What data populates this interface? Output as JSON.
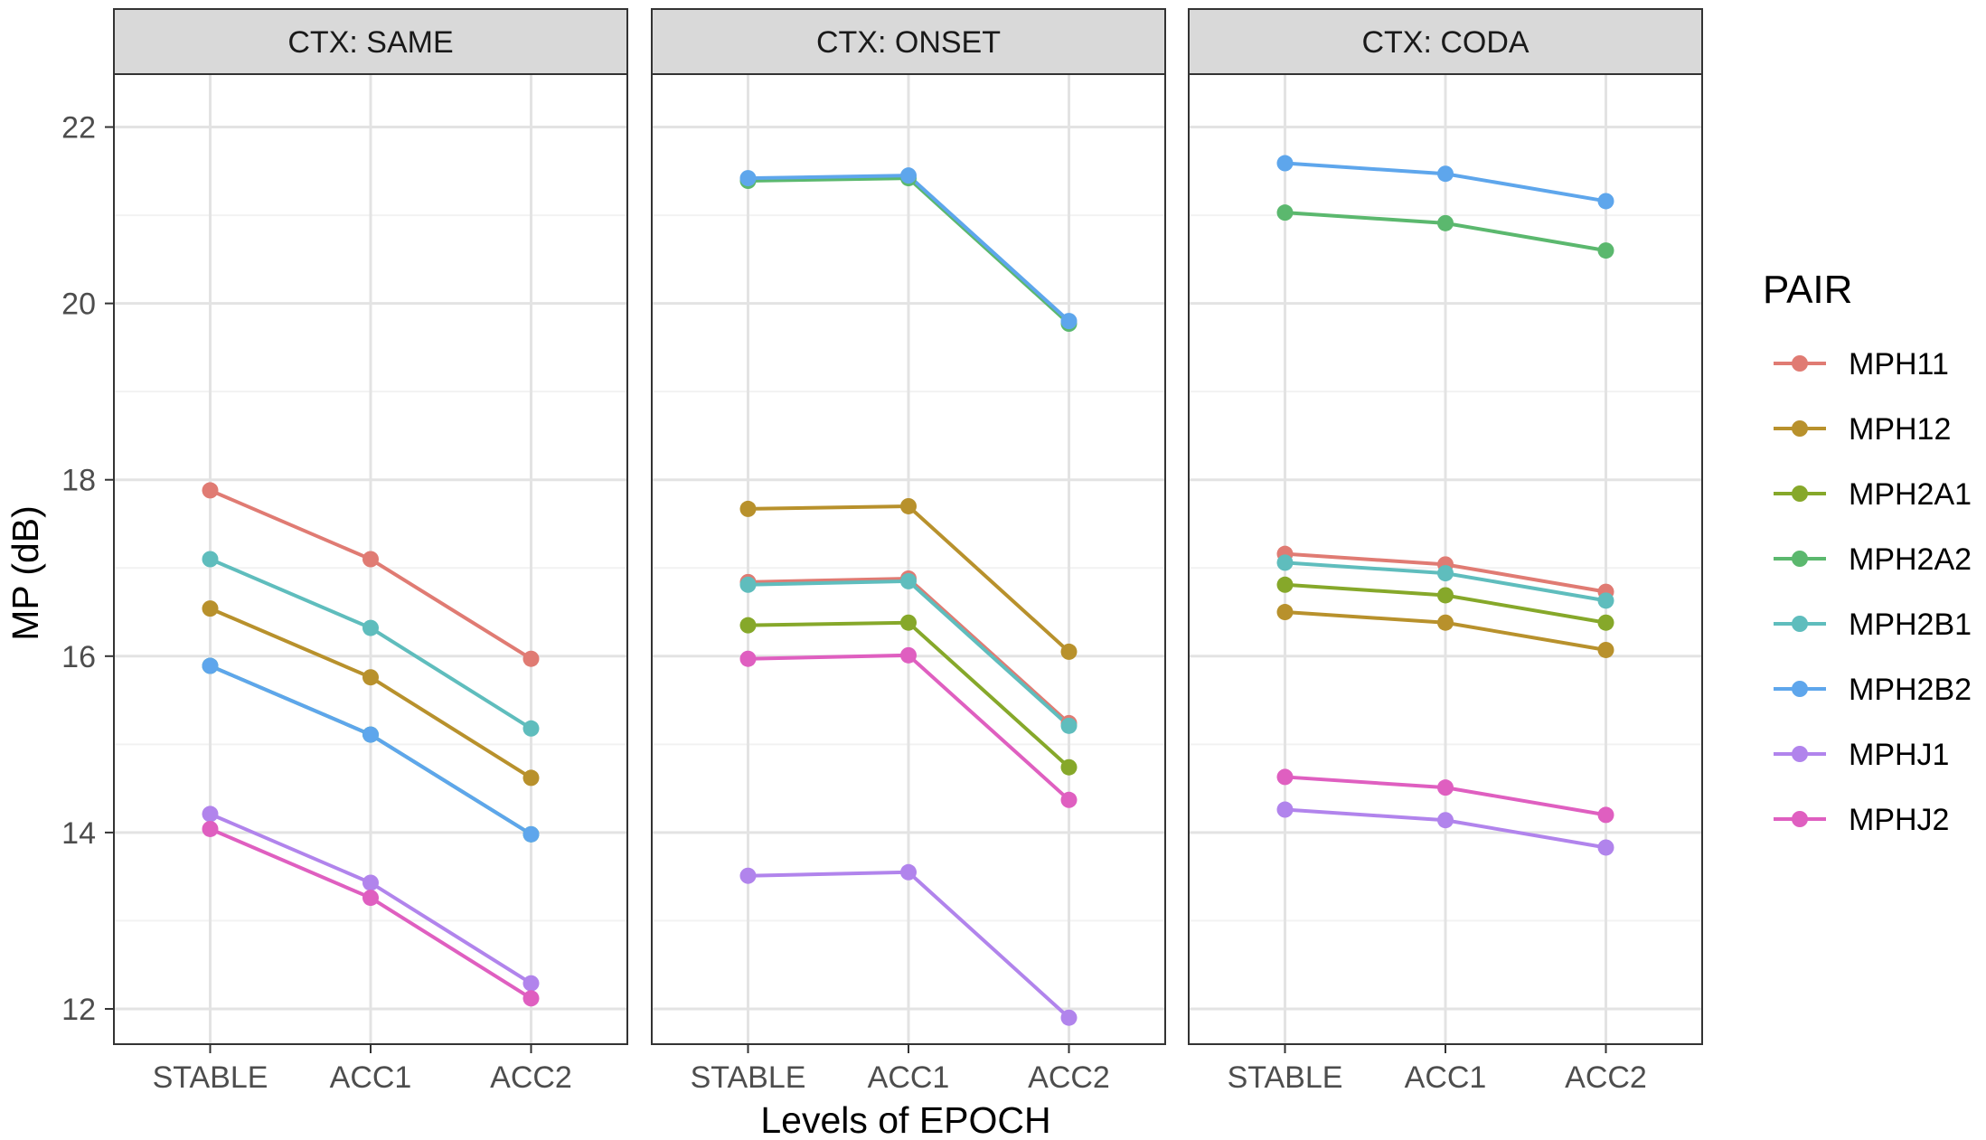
{
  "chart_data": {
    "type": "line",
    "xlabel": "Levels of EPOCH",
    "ylabel": "MP  (dB)",
    "categories": [
      "STABLE",
      "ACC1",
      "ACC2"
    ],
    "yticks": [
      12,
      14,
      16,
      18,
      20,
      22
    ],
    "ylim": [
      11.6,
      22.6
    ],
    "grid": true,
    "legend": {
      "title": "PAIR",
      "position": "right",
      "entries": [
        "MPH11",
        "MPH12",
        "MPH2A1",
        "MPH2A2",
        "MPH2B1",
        "MPH2B2",
        "MPHJ1",
        "MPHJ2"
      ]
    },
    "colors": {
      "MPH11": "#e07b73",
      "MPH12": "#b8912c",
      "MPH2A1": "#86a82a",
      "MPH2A2": "#5bb86e",
      "MPH2B1": "#5fbdbd",
      "MPH2B2": "#5ea6ec",
      "MPHJ1": "#b184ec",
      "MPHJ2": "#df5fc0"
    },
    "panels": [
      {
        "strip_label": "CTX: SAME",
        "series": [
          {
            "name": "MPH11",
            "values": [
              17.88,
              17.1,
              15.97
            ]
          },
          {
            "name": "MPH12",
            "values": [
              16.54,
              15.76,
              14.62
            ]
          },
          {
            "name": "MPH2A2",
            "values": [
              15.89,
              15.11,
              13.98
            ]
          },
          {
            "name": "MPH2B1",
            "values": [
              17.1,
              16.32,
              15.18
            ]
          },
          {
            "name": "MPH2B2",
            "values": [
              15.89,
              15.11,
              13.98
            ]
          },
          {
            "name": "MPHJ1",
            "values": [
              14.21,
              13.43,
              12.29
            ]
          },
          {
            "name": "MPHJ2",
            "values": [
              14.04,
              13.26,
              12.12
            ]
          }
        ]
      },
      {
        "strip_label": "CTX: ONSET",
        "series": [
          {
            "name": "MPH11",
            "values": [
              16.84,
              16.88,
              15.24
            ]
          },
          {
            "name": "MPH12",
            "values": [
              17.67,
              17.7,
              16.05
            ]
          },
          {
            "name": "MPH2A1",
            "values": [
              16.35,
              16.38,
              14.74
            ]
          },
          {
            "name": "MPH2A2",
            "values": [
              21.39,
              21.42,
              19.77
            ]
          },
          {
            "name": "MPH2B1",
            "values": [
              16.81,
              16.85,
              15.21
            ]
          },
          {
            "name": "MPH2B2",
            "values": [
              21.42,
              21.45,
              19.8
            ]
          },
          {
            "name": "MPHJ1",
            "values": [
              13.51,
              13.55,
              11.9
            ]
          },
          {
            "name": "MPHJ2",
            "values": [
              15.97,
              16.01,
              14.37
            ]
          }
        ]
      },
      {
        "strip_label": "CTX: CODA",
        "series": [
          {
            "name": "MPH11",
            "values": [
              17.16,
              17.04,
              16.73
            ]
          },
          {
            "name": "MPH12",
            "values": [
              16.5,
              16.38,
              16.07
            ]
          },
          {
            "name": "MPH2A1",
            "values": [
              16.81,
              16.69,
              16.38
            ]
          },
          {
            "name": "MPH2A2",
            "values": [
              21.03,
              20.91,
              20.6
            ]
          },
          {
            "name": "MPH2B1",
            "values": [
              17.06,
              16.94,
              16.63
            ]
          },
          {
            "name": "MPH2B2",
            "values": [
              21.59,
              21.47,
              21.16
            ]
          },
          {
            "name": "MPHJ1",
            "values": [
              14.26,
              14.14,
              13.83
            ]
          },
          {
            "name": "MPHJ2",
            "values": [
              14.63,
              14.51,
              14.2
            ]
          }
        ]
      }
    ]
  }
}
